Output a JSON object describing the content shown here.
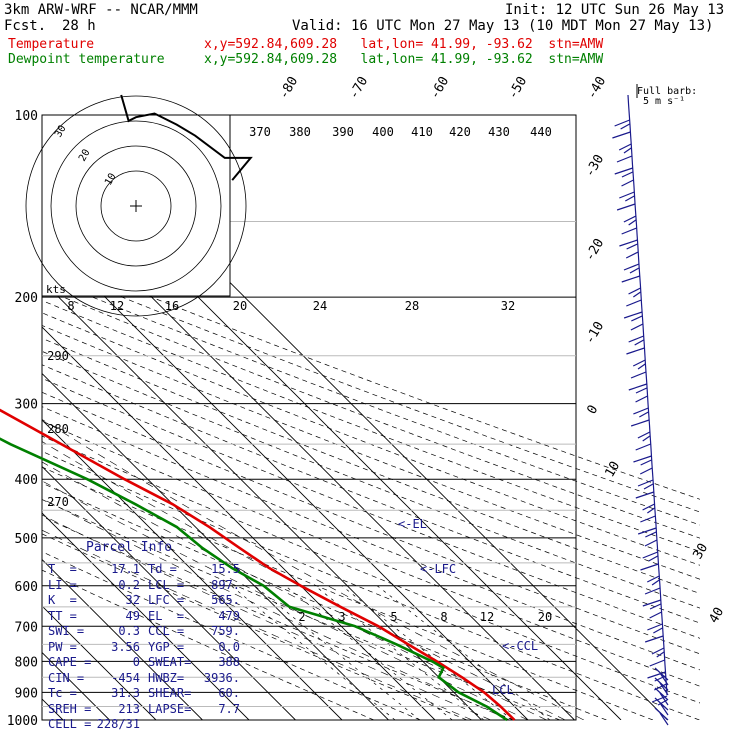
{
  "header": {
    "model": "3km ARW-WRF -- NCAR/MMM",
    "init": "Init: 12 UTC Sun 26 May 13",
    "fcst_label": "Fcst.",
    "fcst_value": "28 h",
    "valid": "Valid: 16 UTC Mon 27 May 13 (10 MDT Mon 27 May 13)"
  },
  "legend": [
    {
      "name": "Temperature",
      "info": "x,y=592.84,609.28   lat,lon= 41.99, -93.62  stn=AMW",
      "color": "#e00000"
    },
    {
      "name": "Dewpoint temperature",
      "info": "x,y=592.84,609.28   lat,lon= 41.99, -93.62  stn=AMW",
      "color": "#008000"
    }
  ],
  "barb_key": {
    "title": "Full barb:",
    "value": "5 m s⁻¹"
  },
  "hodograph": {
    "unit_label": "kts",
    "ring_labels": [
      "10",
      "20",
      "30"
    ],
    "points": [
      [
        26,
        -7
      ],
      [
        31,
        -13
      ],
      [
        24,
        -13
      ],
      [
        16,
        -19
      ],
      [
        11,
        -22
      ],
      [
        5,
        -25
      ],
      [
        0,
        -24
      ],
      [
        -2,
        -23
      ],
      [
        -4,
        -30
      ]
    ]
  },
  "pressure_axis": {
    "labels": [
      "100",
      "200",
      "300",
      "400",
      "500",
      "600",
      "700",
      "800",
      "900",
      "1000"
    ],
    "values": [
      100,
      200,
      300,
      400,
      500,
      600,
      700,
      800,
      900,
      1000
    ]
  },
  "theta_labels": [
    "370",
    "380",
    "390",
    "400",
    "410",
    "420",
    "430",
    "440"
  ],
  "theta_bottom_labels": [
    "290",
    "280",
    "270"
  ],
  "mixing_ratio_top": [
    "8",
    "12",
    "16",
    "20",
    "24",
    "28",
    "32"
  ],
  "mixing_ratio_low": [
    "2",
    "3",
    "5",
    "8",
    "12",
    "20"
  ],
  "isotherm_labels": [
    "-80",
    "-70",
    "-60",
    "-50",
    "-40",
    "-30",
    "-20",
    "-10",
    "0",
    "10",
    "20",
    "30",
    "40"
  ],
  "level_markers": {
    "el": "<-EL",
    "lfc": "<-LFC",
    "ccl": "<-CCL",
    "lcl": "LCL"
  },
  "parcel_info": {
    "title": "Parcel Info",
    "rows": [
      {
        "l1": "T  =",
        "v1": "17.1",
        "l2": "Td =",
        "v2": "15.5"
      },
      {
        "l1": "LI =",
        "v1": "0.2",
        "l2": "LCL =",
        "v2": "897."
      },
      {
        "l1": "K  =",
        "v1": "32",
        "l2": "LFC =",
        "v2": "565."
      },
      {
        "l1": "TT =",
        "v1": "49",
        "l2": "EL  =",
        "v2": "479"
      },
      {
        "l1": "SWI =",
        "v1": "0.3",
        "l2": "CCL =",
        "v2": "759."
      },
      {
        "l1": "PW =",
        "v1": "3.56",
        "l2": "YGP =",
        "v2": "0.0"
      },
      {
        "l1": "CAPE =",
        "v1": "0",
        "l2": "SWEAT=",
        "v2": "388"
      },
      {
        "l1": "CIN =",
        "v1": "-454",
        "l2": "HWBZ=",
        "v2": "3936."
      },
      {
        "l1": "Tc =",
        "v1": "31.3",
        "l2": "SHEAR=",
        "v2": "60."
      },
      {
        "l1": "SREH =",
        "v1": "213",
        "l2": "LAPSE=",
        "v2": "7.7"
      },
      {
        "l1": "CELL =",
        "v1": "228/31",
        "l2": "",
        "v2": ""
      }
    ]
  },
  "chart_data": {
    "type": "line",
    "title": "",
    "xlabel": "",
    "ylabel": "",
    "y_scale": "log pressure (hPa)",
    "ylim": [
      1000,
      100
    ],
    "series": [
      {
        "name": "Temperature",
        "color": "#e00000",
        "points": [
          [
            1000,
            17.1
          ],
          [
            950,
            17
          ],
          [
            900,
            16.5
          ],
          [
            850,
            15
          ],
          [
            800,
            13
          ],
          [
            750,
            10.5
          ],
          [
            700,
            8
          ],
          [
            650,
            4
          ],
          [
            600,
            0
          ],
          [
            560,
            -3
          ],
          [
            520,
            -5
          ],
          [
            480,
            -7
          ],
          [
            440,
            -10
          ],
          [
            400,
            -15
          ],
          [
            350,
            -21
          ],
          [
            300,
            -28
          ],
          [
            250,
            -38
          ],
          [
            220,
            -46
          ],
          [
            200,
            -52
          ],
          [
            180,
            -56
          ],
          [
            160,
            -57
          ],
          [
            150,
            -58
          ],
          [
            135,
            -58
          ],
          [
            125,
            -59
          ],
          [
            112,
            -58
          ],
          [
            100,
            -58
          ]
        ]
      },
      {
        "name": "Dewpoint temperature",
        "color": "#008000",
        "points": [
          [
            1000,
            15.5
          ],
          [
            950,
            14
          ],
          [
            900,
            11
          ],
          [
            850,
            10
          ],
          [
            820,
            13
          ],
          [
            800,
            12
          ],
          [
            750,
            8
          ],
          [
            700,
            3
          ],
          [
            650,
            -7
          ],
          [
            600,
            -8
          ],
          [
            560,
            -11
          ],
          [
            520,
            -13
          ],
          [
            480,
            -14
          ],
          [
            440,
            -18
          ],
          [
            400,
            -23
          ],
          [
            350,
            -32
          ],
          [
            300,
            -40
          ],
          [
            250,
            -50
          ],
          [
            220,
            -58
          ],
          [
            200,
            -64
          ],
          [
            180,
            -70
          ],
          [
            160,
            -76
          ],
          [
            150,
            -80
          ],
          [
            135,
            -82
          ],
          [
            120,
            -83
          ],
          [
            110,
            -82
          ],
          [
            100,
            -82
          ]
        ]
      }
    ]
  }
}
